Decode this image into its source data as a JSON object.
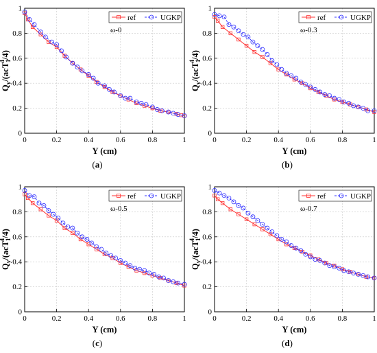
{
  "chart_data": [
    {
      "type": "line",
      "caption": "(a)",
      "annotation": "ω-0",
      "xlabel": "Y (cm)",
      "ylabel_main": "Q",
      "ylabel_sub": "y",
      "ylabel_rest": "/(acT",
      "ylabel_sub2": "1",
      "ylabel_sup": "4",
      "ylabel_tail": "/4)",
      "xlim": [
        0,
        1
      ],
      "ylim": [
        0,
        1
      ],
      "xticks": [
        "0",
        "0.2",
        "0.4",
        "0.6",
        "0.8",
        "1"
      ],
      "yticks": [
        "0",
        "0.2",
        "0.4",
        "0.6",
        "0.8",
        "1"
      ],
      "grid": true,
      "legend_position": "top-right",
      "series": [
        {
          "name": "ref",
          "color": "#ff3333",
          "marker": "square",
          "x": [
            0,
            0.02,
            0.05,
            0.1,
            0.15,
            0.2,
            0.25,
            0.3,
            0.35,
            0.4,
            0.45,
            0.5,
            0.55,
            0.6,
            0.65,
            0.7,
            0.75,
            0.8,
            0.85,
            0.9,
            0.95,
            0.98,
            1
          ],
          "y": [
            0.96,
            0.91,
            0.85,
            0.79,
            0.73,
            0.69,
            0.62,
            0.56,
            0.51,
            0.46,
            0.41,
            0.37,
            0.33,
            0.3,
            0.27,
            0.24,
            0.22,
            0.2,
            0.18,
            0.17,
            0.155,
            0.145,
            0.14
          ]
        },
        {
          "name": "UGKP",
          "color": "#3333ff",
          "marker": "circle",
          "x": [
            0,
            0.03,
            0.06,
            0.1,
            0.13,
            0.17,
            0.2,
            0.23,
            0.26,
            0.3,
            0.33,
            0.36,
            0.4,
            0.43,
            0.46,
            0.5,
            0.53,
            0.56,
            0.6,
            0.63,
            0.66,
            0.7,
            0.73,
            0.76,
            0.8,
            0.83,
            0.86,
            0.9,
            0.93,
            0.96,
            1
          ],
          "y": [
            0.97,
            0.91,
            0.87,
            0.81,
            0.77,
            0.73,
            0.71,
            0.66,
            0.61,
            0.56,
            0.53,
            0.5,
            0.47,
            0.44,
            0.4,
            0.38,
            0.35,
            0.33,
            0.3,
            0.28,
            0.28,
            0.25,
            0.24,
            0.23,
            0.21,
            0.19,
            0.18,
            0.17,
            0.16,
            0.15,
            0.14
          ]
        }
      ]
    },
    {
      "type": "line",
      "caption": "(b)",
      "annotation": "ω-0.3",
      "xlabel": "Y (cm)",
      "ylabel_main": "Q",
      "ylabel_sub": "y",
      "ylabel_rest": "/(acT",
      "ylabel_sub2": "1",
      "ylabel_sup": "4",
      "ylabel_tail": "/4)",
      "xlim": [
        0,
        1
      ],
      "ylim": [
        0,
        1
      ],
      "xticks": [
        "0",
        "0.2",
        "0.4",
        "0.6",
        "0.8",
        "1"
      ],
      "yticks": [
        "0",
        "0.2",
        "0.4",
        "0.6",
        "0.8",
        "1"
      ],
      "grid": true,
      "legend_position": "top-right",
      "series": [
        {
          "name": "ref",
          "color": "#ff3333",
          "marker": "square",
          "x": [
            0,
            0.02,
            0.05,
            0.1,
            0.15,
            0.2,
            0.25,
            0.3,
            0.35,
            0.4,
            0.45,
            0.5,
            0.55,
            0.6,
            0.65,
            0.7,
            0.75,
            0.8,
            0.85,
            0.9,
            0.95,
            1
          ],
          "y": [
            0.93,
            0.9,
            0.85,
            0.8,
            0.75,
            0.7,
            0.65,
            0.61,
            0.56,
            0.51,
            0.47,
            0.43,
            0.4,
            0.36,
            0.33,
            0.3,
            0.27,
            0.25,
            0.23,
            0.21,
            0.19,
            0.17
          ]
        },
        {
          "name": "UGKP",
          "color": "#3333ff",
          "marker": "circle",
          "x": [
            0,
            0.03,
            0.06,
            0.09,
            0.12,
            0.15,
            0.18,
            0.21,
            0.24,
            0.27,
            0.3,
            0.33,
            0.36,
            0.39,
            0.42,
            0.45,
            0.48,
            0.51,
            0.54,
            0.57,
            0.6,
            0.63,
            0.66,
            0.69,
            0.72,
            0.75,
            0.78,
            0.81,
            0.84,
            0.87,
            0.9,
            0.93,
            0.96,
            1
          ],
          "y": [
            0.95,
            0.94,
            0.93,
            0.87,
            0.85,
            0.82,
            0.79,
            0.77,
            0.73,
            0.7,
            0.67,
            0.63,
            0.58,
            0.55,
            0.51,
            0.48,
            0.46,
            0.44,
            0.41,
            0.39,
            0.37,
            0.35,
            0.33,
            0.31,
            0.3,
            0.28,
            0.27,
            0.25,
            0.24,
            0.22,
            0.21,
            0.2,
            0.18,
            0.18
          ]
        }
      ]
    },
    {
      "type": "line",
      "caption": "(c)",
      "annotation": "ω-0.5",
      "xlabel": "Y (cm)",
      "ylabel_main": "Q",
      "ylabel_sub": "y",
      "ylabel_rest": "/(acT",
      "ylabel_sub2": "1",
      "ylabel_sup": "4",
      "ylabel_tail": "/4)",
      "xlim": [
        0,
        1
      ],
      "ylim": [
        0,
        1
      ],
      "xticks": [
        "0",
        "0.2",
        "0.4",
        "0.6",
        "0.8",
        "1"
      ],
      "yticks": [
        "0",
        "0.2",
        "0.4",
        "0.6",
        "0.8",
        "1"
      ],
      "grid": true,
      "legend_position": "top-right",
      "series": [
        {
          "name": "ref",
          "color": "#ff3333",
          "marker": "square",
          "x": [
            0,
            0.02,
            0.05,
            0.1,
            0.15,
            0.2,
            0.25,
            0.3,
            0.35,
            0.4,
            0.45,
            0.5,
            0.55,
            0.6,
            0.65,
            0.7,
            0.75,
            0.8,
            0.85,
            0.9,
            0.95,
            1
          ],
          "y": [
            0.94,
            0.91,
            0.87,
            0.82,
            0.77,
            0.73,
            0.67,
            0.63,
            0.58,
            0.54,
            0.5,
            0.46,
            0.43,
            0.39,
            0.36,
            0.33,
            0.31,
            0.29,
            0.27,
            0.25,
            0.23,
            0.21
          ]
        },
        {
          "name": "UGKP",
          "color": "#3333ff",
          "marker": "circle",
          "x": [
            0,
            0.03,
            0.06,
            0.09,
            0.12,
            0.15,
            0.18,
            0.21,
            0.24,
            0.27,
            0.3,
            0.33,
            0.36,
            0.39,
            0.42,
            0.45,
            0.48,
            0.51,
            0.54,
            0.57,
            0.6,
            0.63,
            0.66,
            0.69,
            0.72,
            0.75,
            0.78,
            0.81,
            0.84,
            0.87,
            0.9,
            0.93,
            0.96,
            1
          ],
          "y": [
            0.97,
            0.93,
            0.92,
            0.87,
            0.85,
            0.81,
            0.78,
            0.75,
            0.71,
            0.68,
            0.67,
            0.63,
            0.6,
            0.58,
            0.55,
            0.52,
            0.5,
            0.47,
            0.45,
            0.43,
            0.41,
            0.39,
            0.37,
            0.35,
            0.34,
            0.33,
            0.31,
            0.3,
            0.28,
            0.27,
            0.25,
            0.24,
            0.23,
            0.22
          ]
        }
      ]
    },
    {
      "type": "line",
      "caption": "(d)",
      "annotation": "ω-0.7",
      "xlabel": "Y (cm)",
      "ylabel_main": "Q",
      "ylabel_sub": "y",
      "ylabel_rest": "/(acT",
      "ylabel_sub2": "1",
      "ylabel_sup": "4",
      "ylabel_tail": "/4)",
      "xlim": [
        0,
        1
      ],
      "ylim": [
        0,
        1
      ],
      "xticks": [
        "0",
        "0.2",
        "0.4",
        "0.6",
        "0.8",
        "1"
      ],
      "yticks": [
        "0",
        "0.2",
        "0.4",
        "0.6",
        "0.8",
        "1"
      ],
      "grid": true,
      "legend_position": "top-right",
      "series": [
        {
          "name": "ref",
          "color": "#ff3333",
          "marker": "square",
          "x": [
            0,
            0.02,
            0.05,
            0.1,
            0.15,
            0.2,
            0.25,
            0.3,
            0.35,
            0.4,
            0.45,
            0.5,
            0.55,
            0.6,
            0.65,
            0.7,
            0.75,
            0.8,
            0.85,
            0.9,
            0.95,
            1
          ],
          "y": [
            0.93,
            0.9,
            0.87,
            0.82,
            0.78,
            0.74,
            0.7,
            0.66,
            0.62,
            0.58,
            0.54,
            0.51,
            0.48,
            0.45,
            0.42,
            0.39,
            0.37,
            0.34,
            0.32,
            0.3,
            0.28,
            0.27
          ]
        },
        {
          "name": "UGKP",
          "color": "#3333ff",
          "marker": "circle",
          "x": [
            0,
            0.03,
            0.06,
            0.09,
            0.12,
            0.15,
            0.18,
            0.21,
            0.24,
            0.27,
            0.3,
            0.33,
            0.36,
            0.39,
            0.42,
            0.45,
            0.48,
            0.51,
            0.54,
            0.57,
            0.6,
            0.63,
            0.66,
            0.69,
            0.72,
            0.75,
            0.78,
            0.81,
            0.84,
            0.87,
            0.9,
            0.93,
            0.96,
            1
          ],
          "y": [
            0.97,
            0.95,
            0.93,
            0.91,
            0.88,
            0.85,
            0.83,
            0.79,
            0.76,
            0.73,
            0.7,
            0.67,
            0.64,
            0.61,
            0.58,
            0.56,
            0.53,
            0.51,
            0.49,
            0.46,
            0.44,
            0.42,
            0.41,
            0.39,
            0.37,
            0.36,
            0.35,
            0.33,
            0.32,
            0.31,
            0.3,
            0.29,
            0.28,
            0.27
          ]
        }
      ]
    }
  ]
}
